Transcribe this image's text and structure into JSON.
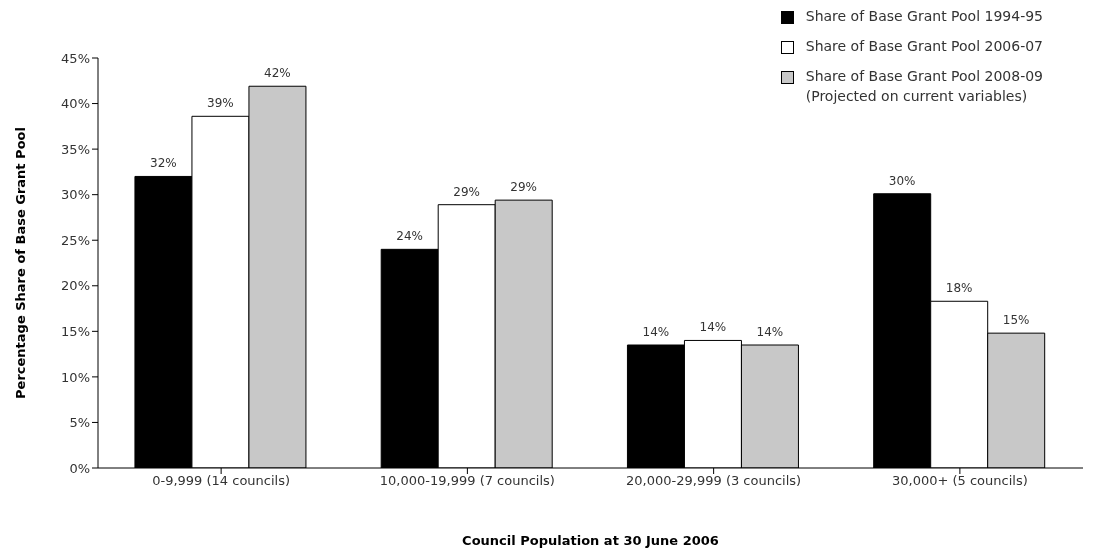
{
  "chart_data": {
    "type": "bar",
    "xlabel": "Council Population at 30 June 2006",
    "ylabel": "Percentage Share of Base Grant Pool",
    "categories": [
      "0-9,999 (14 councils)",
      "10,000-19,999 (7 councils)",
      "20,000-29,999 (3 councils)",
      "30,000+ (5 councils)"
    ],
    "series": [
      {
        "name": "Share of Base Grant Pool 1994-95",
        "color": "#000000",
        "values": [
          32.0,
          24.0,
          13.5,
          30.1
        ],
        "value_labels": [
          "32%",
          "24%",
          "14%",
          "30%"
        ]
      },
      {
        "name": "Share of Base Grant Pool 2006-07",
        "color": "#ffffff",
        "values": [
          38.6,
          28.9,
          14.0,
          18.3
        ],
        "value_labels": [
          "39%",
          "29%",
          "14%",
          "18%"
        ]
      },
      {
        "name": "Share of Base Grant Pool 2008-09\n(Projected on current variables)",
        "color": "#c8c8c8",
        "values": [
          41.9,
          29.4,
          13.5,
          14.8
        ],
        "value_labels": [
          "42%",
          "29%",
          "14%",
          "15%"
        ]
      }
    ],
    "ylim": [
      0,
      45
    ],
    "yticks": [
      {
        "value": 0,
        "label": "0%"
      },
      {
        "value": 5,
        "label": "5%"
      },
      {
        "value": 10,
        "label": "10%"
      },
      {
        "value": 15,
        "label": "15%"
      },
      {
        "value": 20,
        "label": "20%"
      },
      {
        "value": 25,
        "label": "25%"
      },
      {
        "value": 30,
        "label": "30%"
      },
      {
        "value": 35,
        "label": "35%"
      },
      {
        "value": 40,
        "label": "40%"
      },
      {
        "value": 45,
        "label": "45%"
      }
    ],
    "grid": false,
    "legend": "top right"
  }
}
